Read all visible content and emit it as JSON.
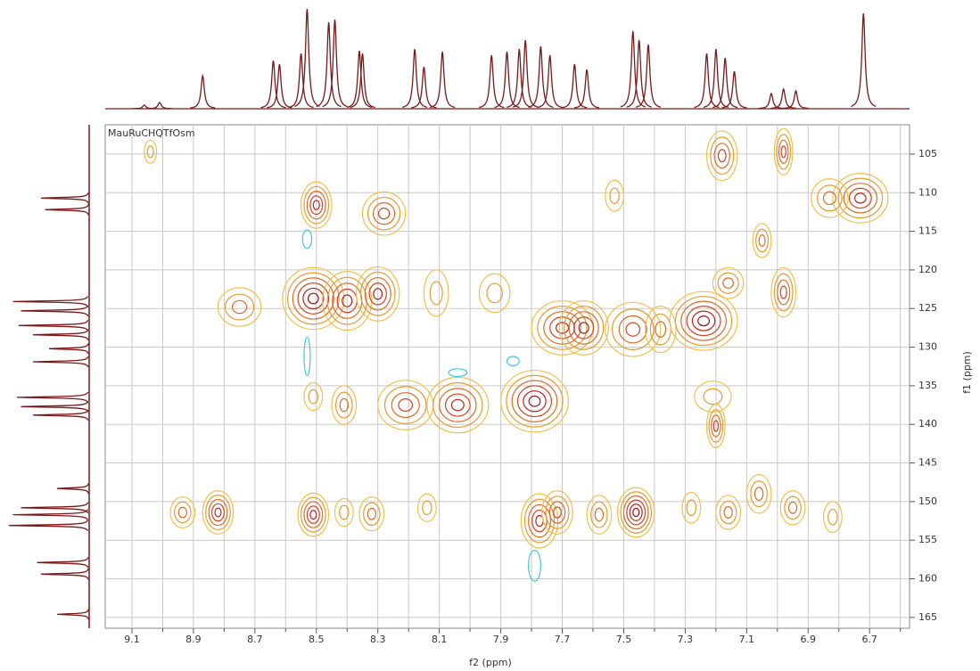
{
  "chart_data": {
    "type": "contour",
    "title": "MauRuCHQTfOsm",
    "xlabel": "f2 (ppm)",
    "ylabel": "f1 (ppm)",
    "xlim": [
      9.187,
      6.57
    ],
    "ylim": [
      101.2,
      166.4
    ],
    "xticks": [
      9.1,
      8.9,
      8.7,
      8.5,
      8.3,
      8.1,
      7.9,
      7.7,
      7.5,
      7.3,
      7.1,
      6.9,
      6.7
    ],
    "xminor": [
      9.0,
      8.8,
      8.6,
      8.4,
      8.2,
      8.0,
      7.8,
      7.6,
      7.4,
      7.2,
      7.0,
      6.8,
      6.6
    ],
    "yticks": [
      105,
      110,
      115,
      120,
      125,
      130,
      135,
      140,
      145,
      150,
      155,
      160,
      165
    ],
    "grid": true,
    "grid_color": "#c8c8c8",
    "peaks": {
      "colors": [
        "#f2c04a",
        "#eb9a2c",
        "#e36a22",
        "#d8401c",
        "#c02018",
        "#a01010"
      ],
      "x": [
        9.04,
        8.935,
        8.82,
        8.51,
        8.41,
        8.32,
        8.14,
        7.774,
        7.716,
        7.58,
        7.46,
        7.28,
        7.16,
        7.06,
        6.95,
        6.82,
        8.75,
        8.51,
        8.4,
        8.3,
        8.11,
        7.92,
        7.7,
        7.63,
        7.47,
        7.38,
        7.24,
        8.41,
        8.21,
        8.04,
        7.79,
        8.51,
        8.5,
        8.28,
        6.73,
        6.83,
        7.18,
        6.98,
        7.53,
        7.21,
        7.2,
        7.05,
        6.98,
        7.16
      ],
      "y": [
        104.7,
        151.4,
        151.4,
        151.7,
        151.4,
        151.6,
        150.8,
        152.5,
        151.4,
        151.7,
        151.4,
        150.8,
        151.4,
        149.0,
        150.8,
        152.0,
        124.8,
        123.7,
        124.0,
        123.1,
        123.0,
        123.0,
        127.5,
        127.5,
        127.7,
        127.7,
        126.6,
        137.5,
        137.5,
        137.5,
        137.0,
        136.4,
        111.6,
        112.7,
        110.7,
        110.7,
        105.2,
        104.7,
        110.4,
        136.4,
        140.2,
        116.2,
        122.9,
        121.7
      ],
      "rx": [
        0.02,
        0.04,
        0.05,
        0.05,
        0.03,
        0.04,
        0.03,
        0.06,
        0.05,
        0.04,
        0.06,
        0.03,
        0.04,
        0.04,
        0.04,
        0.03,
        0.07,
        0.1,
        0.08,
        0.07,
        0.04,
        0.05,
        0.1,
        0.08,
        0.09,
        0.05,
        0.11,
        0.04,
        0.09,
        0.1,
        0.11,
        0.03,
        0.05,
        0.07,
        0.09,
        0.06,
        0.05,
        0.03,
        0.03,
        0.06,
        0.03,
        0.03,
        0.04,
        0.05
      ],
      "ry": [
        1.5,
        2.0,
        2.8,
        2.8,
        1.8,
        2.2,
        1.8,
        3.5,
        2.8,
        2.5,
        3.2,
        2.0,
        2.2,
        2.5,
        2.2,
        2.0,
        2.5,
        4.0,
        3.8,
        3.5,
        3.0,
        2.5,
        3.5,
        3.5,
        3.5,
        3.0,
        3.8,
        2.5,
        3.2,
        3.6,
        4.0,
        1.8,
        3.0,
        2.8,
        3.2,
        2.5,
        3.2,
        3.0,
        2.0,
        2.0,
        2.8,
        2.2,
        3.2,
        2.0
      ],
      "levels": [
        2,
        3,
        5,
        5,
        2,
        3,
        2,
        5,
        4,
        3,
        6,
        2,
        3,
        3,
        3,
        2,
        3,
        6,
        5,
        5,
        2,
        2,
        5,
        5,
        4,
        3,
        6,
        3,
        4,
        5,
        6,
        2,
        5,
        4,
        5,
        3,
        4,
        4,
        2,
        2,
        4,
        3,
        4,
        3
      ]
    },
    "negative_peaks": {
      "color": "#40c8d8",
      "x": [
        7.79,
        8.04,
        7.86,
        8.53,
        8.53
      ],
      "y": [
        158.3,
        133.3,
        131.8,
        131.2,
        116.0
      ],
      "rx": [
        0.02,
        0.03,
        0.02,
        0.01,
        0.015
      ],
      "ry": [
        2.0,
        0.5,
        0.6,
        2.5,
        1.2
      ]
    },
    "projection_f2": {
      "color": "#7a1818",
      "ylim": [
        0,
        115
      ],
      "x": [
        9.06,
        9.01,
        8.87,
        8.64,
        8.62,
        8.55,
        8.53,
        8.46,
        8.44,
        8.36,
        8.35,
        8.18,
        8.15,
        8.09,
        7.93,
        7.88,
        7.84,
        7.82,
        7.77,
        7.74,
        7.66,
        7.62,
        7.47,
        7.45,
        7.42,
        7.23,
        7.2,
        7.17,
        7.14,
        7.02,
        6.98,
        6.94,
        6.72
      ],
      "height": [
        4,
        7,
        37,
        54,
        50,
        62,
        112,
        97,
        100,
        65,
        62,
        67,
        47,
        64,
        60,
        64,
        67,
        77,
        70,
        60,
        50,
        44,
        87,
        77,
        72,
        62,
        67,
        57,
        42,
        17,
        22,
        20,
        107
      ]
    },
    "projection_f1": {
      "color": "#7a1818",
      "xlim": [
        0,
        100
      ],
      "y": [
        110.7,
        112.2,
        124.1,
        125.3,
        127.2,
        128.4,
        130.2,
        131.9,
        136.5,
        137.7,
        138.8,
        148.3,
        150.8,
        151.7,
        153.1,
        157.9,
        159.4,
        164.6
      ],
      "height": [
        60,
        55,
        95,
        85,
        88,
        70,
        50,
        70,
        90,
        85,
        70,
        40,
        85,
        95,
        100,
        65,
        60,
        40
      ]
    }
  }
}
